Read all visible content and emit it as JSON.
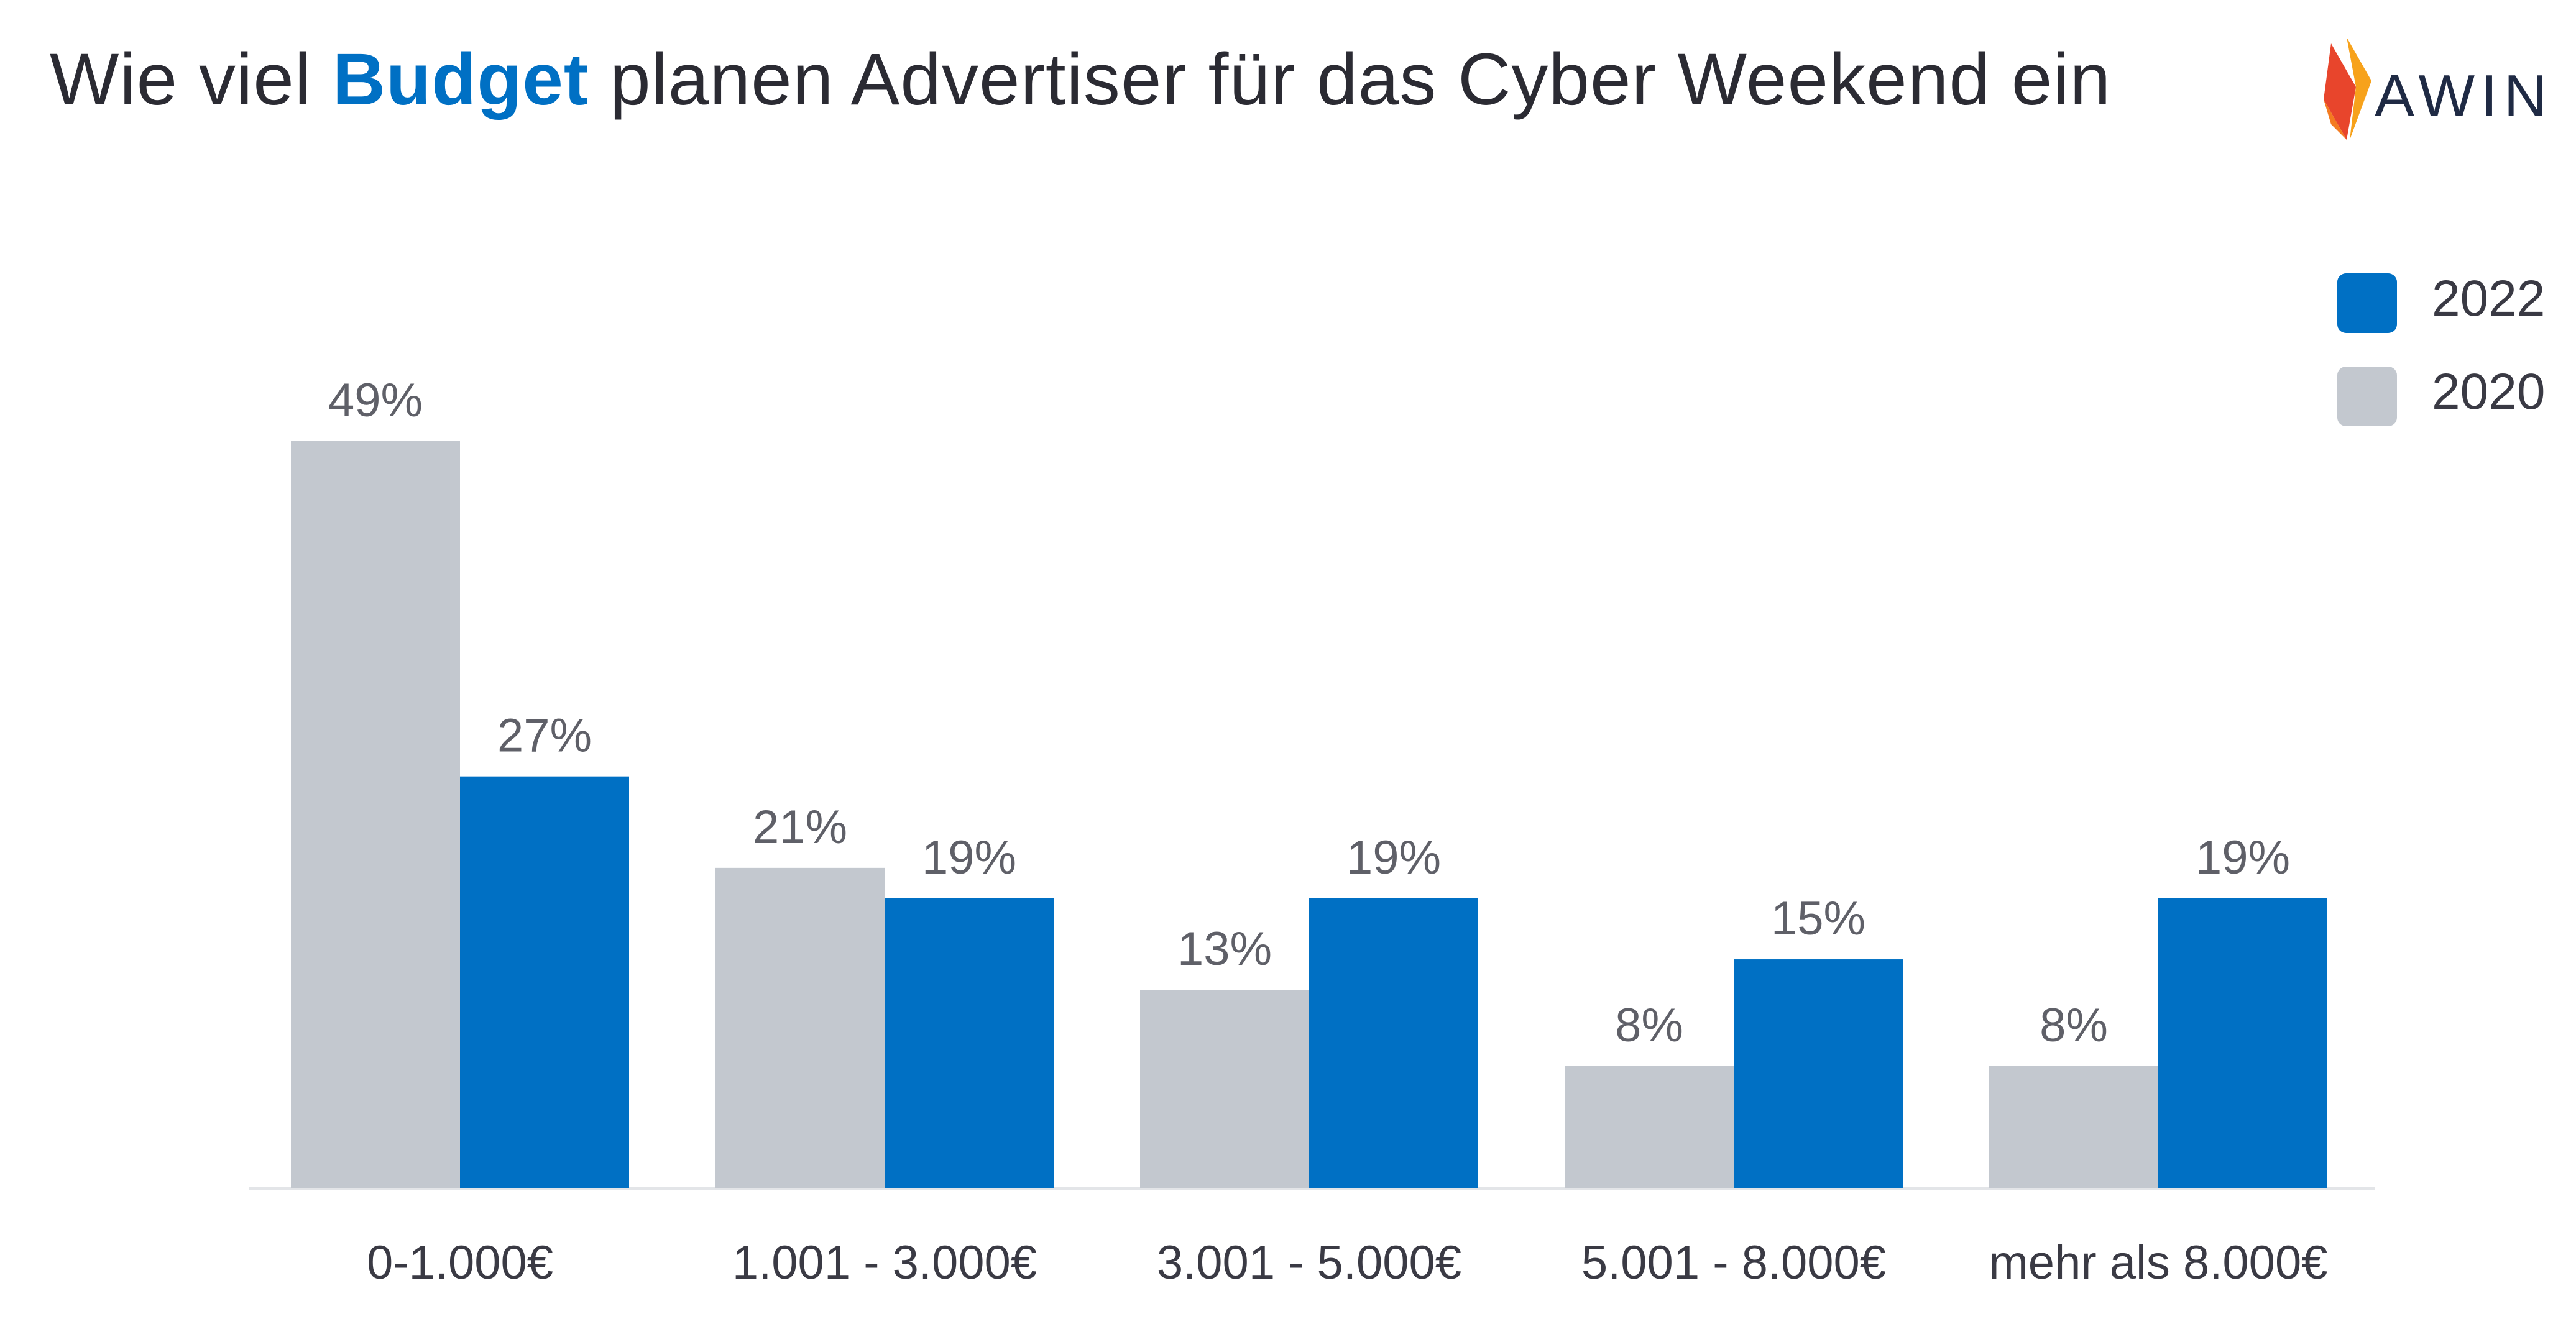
{
  "header": {
    "title_pre": "Wie viel ",
    "title_highlight": "Budget",
    "title_post": " planen Advertiser für das Cyber Weekend ein"
  },
  "logo": {
    "text": "AWIN"
  },
  "legend": {
    "items": [
      {
        "label": "2022",
        "color": "#0070c4"
      },
      {
        "label": "2020",
        "color": "#c3c8cf"
      }
    ]
  },
  "chart_data": {
    "type": "bar",
    "categories": [
      "0-1.000€",
      "1.001 - 3.000€",
      "3.001 - 5.000€",
      "5.001 - 8.000€",
      "mehr als 8.000€"
    ],
    "series": [
      {
        "name": "2020",
        "color": "#c3c8cf",
        "values": [
          49,
          21,
          13,
          8,
          8
        ],
        "labels": [
          "49%",
          "21%",
          "13%",
          "8%",
          "8%"
        ]
      },
      {
        "name": "2022",
        "color": "#0070c4",
        "values": [
          27,
          19,
          19,
          15,
          19
        ],
        "labels": [
          "27%",
          "19%",
          "19%",
          "15%",
          "19%"
        ]
      }
    ],
    "ylim": [
      0,
      49
    ],
    "legend_position": "top-right",
    "grid": false
  }
}
